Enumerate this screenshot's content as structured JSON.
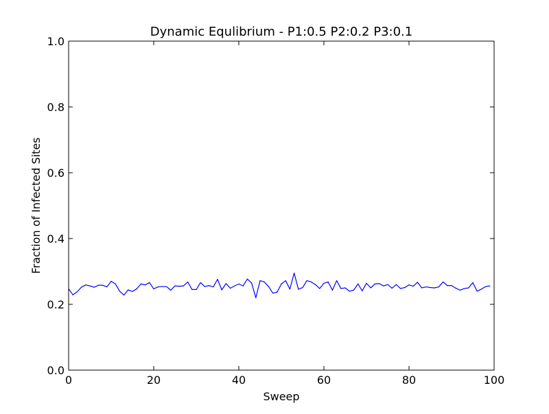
{
  "chart_data": {
    "type": "line",
    "title": "Dynamic Equlibrium - P1:0.5 P2:0.2 P3:0.1",
    "xlabel": "Sweep",
    "ylabel": "Fraction of Infected Sites",
    "xlim": [
      0,
      100
    ],
    "ylim": [
      0,
      1
    ],
    "xticks": [
      0,
      20,
      40,
      60,
      80,
      100
    ],
    "yticks": [
      0.0,
      0.2,
      0.4,
      0.6,
      0.8,
      1.0
    ],
    "xtick_labels": [
      "0",
      "20",
      "40",
      "60",
      "80",
      "100"
    ],
    "ytick_labels": [
      "0.0",
      "0.2",
      "0.4",
      "0.6",
      "0.8",
      "1.0"
    ],
    "grid": false,
    "legend": "none",
    "series": [
      {
        "color": "#0000ff",
        "x": [
          0,
          1,
          2,
          3,
          4,
          5,
          6,
          7,
          8,
          9,
          10,
          11,
          12,
          13,
          14,
          15,
          16,
          17,
          18,
          19,
          20,
          21,
          22,
          23,
          24,
          25,
          26,
          27,
          28,
          29,
          30,
          31,
          32,
          33,
          34,
          35,
          36,
          37,
          38,
          39,
          40,
          41,
          42,
          43,
          44,
          45,
          46,
          47,
          48,
          49,
          50,
          51,
          52,
          53,
          54,
          55,
          56,
          57,
          58,
          59,
          60,
          61,
          62,
          63,
          64,
          65,
          66,
          67,
          68,
          69,
          70,
          71,
          72,
          73,
          74,
          75,
          76,
          77,
          78,
          79,
          80,
          81,
          82,
          83,
          84,
          85,
          86,
          87,
          88,
          89,
          90,
          91,
          92,
          93,
          94,
          95,
          96,
          97,
          98,
          99
        ],
        "y": [
          0.247,
          0.229,
          0.238,
          0.252,
          0.259,
          0.256,
          0.252,
          0.258,
          0.258,
          0.253,
          0.27,
          0.262,
          0.24,
          0.228,
          0.244,
          0.239,
          0.247,
          0.262,
          0.259,
          0.266,
          0.247,
          0.253,
          0.254,
          0.254,
          0.243,
          0.256,
          0.255,
          0.256,
          0.268,
          0.245,
          0.245,
          0.266,
          0.254,
          0.257,
          0.253,
          0.276,
          0.244,
          0.263,
          0.249,
          0.256,
          0.262,
          0.256,
          0.277,
          0.265,
          0.22,
          0.272,
          0.268,
          0.254,
          0.234,
          0.237,
          0.262,
          0.272,
          0.246,
          0.295,
          0.246,
          0.251,
          0.272,
          0.268,
          0.26,
          0.248,
          0.264,
          0.268,
          0.243,
          0.272,
          0.248,
          0.25,
          0.24,
          0.243,
          0.262,
          0.241,
          0.264,
          0.25,
          0.262,
          0.263,
          0.256,
          0.26,
          0.249,
          0.26,
          0.248,
          0.251,
          0.259,
          0.255,
          0.267,
          0.25,
          0.253,
          0.251,
          0.25,
          0.253,
          0.268,
          0.257,
          0.257,
          0.249,
          0.243,
          0.248,
          0.25,
          0.266,
          0.24,
          0.246,
          0.254,
          0.256
        ]
      }
    ]
  }
}
